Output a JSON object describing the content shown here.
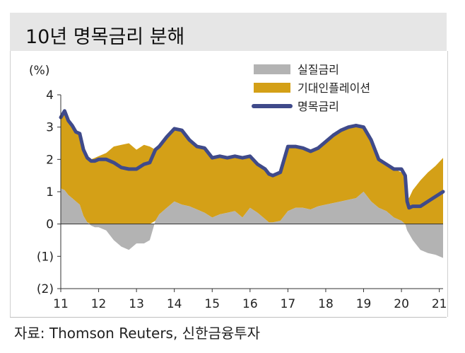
{
  "title": "10년 명목금리 분해",
  "source": "자료: Thomson Reuters, 신한금융투자",
  "chart_data": {
    "type": "area",
    "unit_label": "(%)",
    "ylim": [
      -2,
      4
    ],
    "y_ticks": [
      4,
      3,
      2,
      1,
      0,
      -1,
      -2
    ],
    "y_tick_labels": [
      "4",
      "3",
      "2",
      "1",
      "0",
      "(1)",
      "(2)"
    ],
    "x_ticks": [
      2011,
      2012,
      2013,
      2014,
      2015,
      2016,
      2017,
      2018,
      2019,
      2020,
      2021
    ],
    "x_tick_labels": [
      "11",
      "12",
      "13",
      "14",
      "15",
      "16",
      "17",
      "18",
      "19",
      "20",
      "21"
    ],
    "xlim": [
      2011.0,
      2021.1
    ],
    "legend_position": "top-right",
    "colors": {
      "real": "#b3b3b3",
      "inflation": "#d4a017",
      "nominal": "#3f4a8a"
    },
    "x": [
      2011.0,
      2011.1,
      2011.2,
      2011.3,
      2011.4,
      2011.5,
      2011.6,
      2011.7,
      2011.8,
      2011.9,
      2012.0,
      2012.2,
      2012.4,
      2012.6,
      2012.8,
      2013.0,
      2013.2,
      2013.35,
      2013.5,
      2013.6,
      2013.8,
      2014.0,
      2014.2,
      2014.4,
      2014.6,
      2014.8,
      2015.0,
      2015.2,
      2015.4,
      2015.6,
      2015.8,
      2016.0,
      2016.2,
      2016.4,
      2016.5,
      2016.6,
      2016.8,
      2017.0,
      2017.2,
      2017.4,
      2017.6,
      2017.8,
      2018.0,
      2018.2,
      2018.4,
      2018.6,
      2018.8,
      2019.0,
      2019.2,
      2019.4,
      2019.6,
      2019.8,
      2020.0,
      2020.1,
      2020.15,
      2020.2,
      2020.3,
      2020.5,
      2020.7,
      2020.9,
      2021.1
    ],
    "series": [
      {
        "name": "실질금리",
        "type": "area",
        "values": [
          1.1,
          1.05,
          0.9,
          0.8,
          0.7,
          0.6,
          0.25,
          0.05,
          -0.05,
          -0.1,
          -0.1,
          -0.2,
          -0.5,
          -0.7,
          -0.8,
          -0.6,
          -0.6,
          -0.5,
          0.1,
          0.3,
          0.5,
          0.7,
          0.6,
          0.55,
          0.45,
          0.35,
          0.2,
          0.3,
          0.35,
          0.4,
          0.2,
          0.5,
          0.35,
          0.15,
          0.05,
          0.05,
          0.1,
          0.4,
          0.5,
          0.5,
          0.45,
          0.55,
          0.6,
          0.65,
          0.7,
          0.75,
          0.8,
          1.0,
          0.7,
          0.5,
          0.4,
          0.2,
          0.1,
          0.0,
          -0.2,
          -0.3,
          -0.5,
          -0.8,
          -0.9,
          -0.95,
          -1.05
        ]
      },
      {
        "name": "기대인플레이션",
        "type": "area",
        "values": [
          2.2,
          2.45,
          2.3,
          2.25,
          2.15,
          2.2,
          2.05,
          2.0,
          2.0,
          2.05,
          2.1,
          2.2,
          2.4,
          2.45,
          2.5,
          2.3,
          2.45,
          2.4,
          2.2,
          2.1,
          2.2,
          2.25,
          2.3,
          2.05,
          1.95,
          2.0,
          1.85,
          1.8,
          1.7,
          1.7,
          1.85,
          1.6,
          1.5,
          1.55,
          1.5,
          1.45,
          1.5,
          2.0,
          1.9,
          1.85,
          1.8,
          1.8,
          1.95,
          2.1,
          2.2,
          2.25,
          2.25,
          2.0,
          1.9,
          1.5,
          1.45,
          1.5,
          1.5,
          1.5,
          0.9,
          0.8,
          1.05,
          1.35,
          1.6,
          1.8,
          2.05
        ]
      },
      {
        "name": "명목금리",
        "type": "line",
        "values": [
          3.3,
          3.5,
          3.2,
          3.05,
          2.85,
          2.8,
          2.3,
          2.05,
          1.95,
          1.95,
          2.0,
          2.0,
          1.9,
          1.75,
          1.7,
          1.7,
          1.85,
          1.9,
          2.3,
          2.4,
          2.7,
          2.95,
          2.9,
          2.6,
          2.4,
          2.35,
          2.05,
          2.1,
          2.05,
          2.1,
          2.05,
          2.1,
          1.85,
          1.7,
          1.55,
          1.5,
          1.6,
          2.4,
          2.4,
          2.35,
          2.25,
          2.35,
          2.55,
          2.75,
          2.9,
          3.0,
          3.05,
          3.0,
          2.6,
          2.0,
          1.85,
          1.7,
          1.7,
          1.5,
          0.7,
          0.5,
          0.55,
          0.55,
          0.7,
          0.85,
          1.0
        ]
      }
    ]
  }
}
